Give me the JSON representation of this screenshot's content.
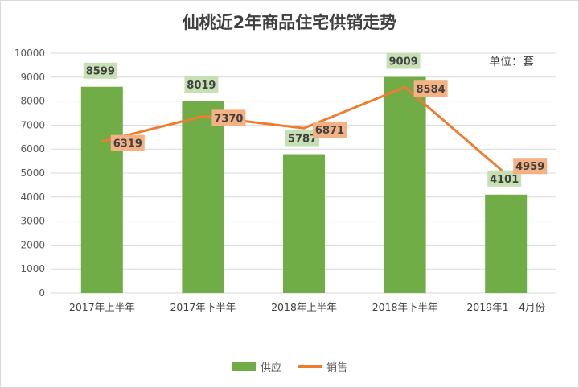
{
  "chart_data": {
    "type": "bar",
    "title": "仙桃近2年商品住宅供销走势",
    "unit_label": "单位：套",
    "categories": [
      "2017年上半年",
      "2017年下半年",
      "2018年上半年",
      "2018年下半年",
      "2019年1—4月份"
    ],
    "ylim": [
      0,
      10000
    ],
    "yticks": [
      0,
      1000,
      2000,
      3000,
      4000,
      5000,
      6000,
      7000,
      8000,
      9000,
      10000
    ],
    "grid": true,
    "legend_position": "bottom",
    "series": [
      {
        "name": "供应",
        "type": "bar",
        "color": "#70ad47",
        "label_bg": "#c6e0b4",
        "values": [
          8599,
          8019,
          5787,
          9009,
          4101
        ]
      },
      {
        "name": "销售",
        "type": "line",
        "color": "#ed7d31",
        "label_bg": "#f4b183",
        "values": [
          6319,
          7370,
          6871,
          8584,
          4959
        ]
      }
    ]
  }
}
